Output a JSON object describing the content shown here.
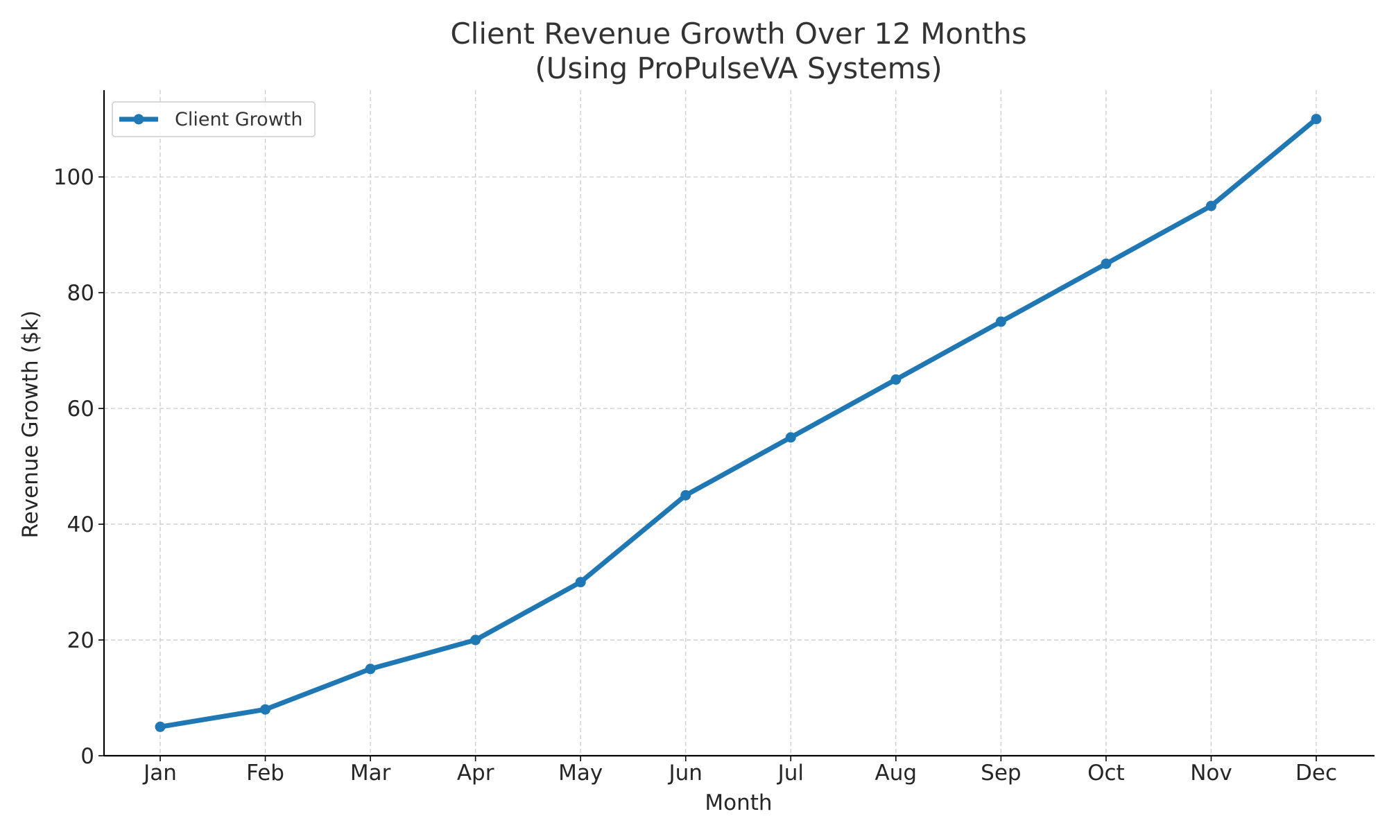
{
  "chart_data": {
    "type": "line",
    "title": "Client Revenue Growth Over 12 Months\n(Using ProPulseVA Systems)",
    "title_lines": [
      "Client Revenue Growth Over 12 Months",
      "(Using ProPulseVA Systems)"
    ],
    "xlabel": "Month",
    "ylabel": "Revenue Growth ($k)",
    "categories": [
      "Jan",
      "Feb",
      "Mar",
      "Apr",
      "May",
      "Jun",
      "Jul",
      "Aug",
      "Sep",
      "Oct",
      "Nov",
      "Dec"
    ],
    "series": [
      {
        "name": "Client Growth",
        "values": [
          5,
          8,
          15,
          20,
          30,
          45,
          55,
          65,
          75,
          85,
          95,
          110
        ],
        "color": "#1f77b4",
        "marker": "circle"
      }
    ],
    "ylim": [
      0,
      115
    ],
    "yticks": [
      0,
      20,
      40,
      60,
      80,
      100
    ],
    "grid": true,
    "legend": "top-left"
  }
}
